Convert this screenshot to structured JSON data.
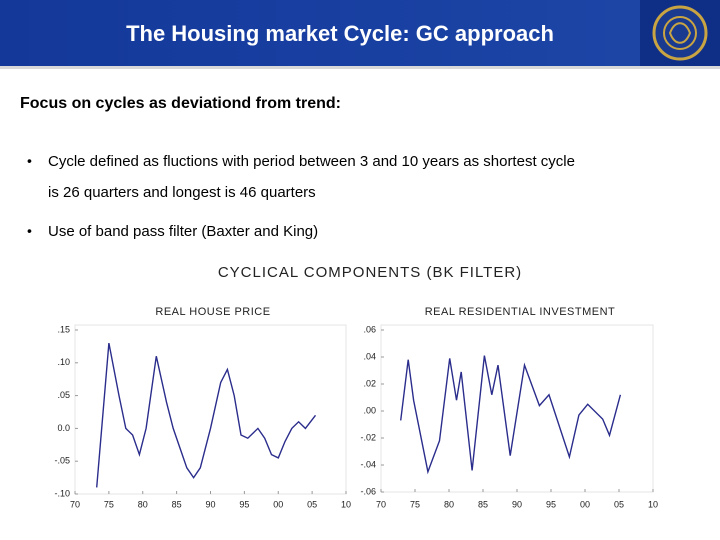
{
  "header": {
    "title": "The Housing market Cycle: GC approach"
  },
  "heading": "Focus on cycles as deviationd from trend:",
  "bullets": [
    "Cycle defined as fluctions with period between 3 and 10 years as shortest cycle",
    "is 26 quarters and longest is 46 quarters",
    "Use of band pass filter (Baxter and King)"
  ],
  "figure_title": "CYCLICAL COMPONENTS (BK FILTER)",
  "chart_data": [
    {
      "type": "line",
      "title": "REAL HOUSE PRICE",
      "color": "#2b2d8c",
      "x": [
        1973.2,
        1975,
        1976.5,
        1977.5,
        1978.5,
        1979.5,
        1980.5,
        1982,
        1983.5,
        1984.5,
        1985.5,
        1986.5,
        1987.5,
        1988.5,
        1990,
        1991.5,
        1992.5,
        1993.5,
        1994.5,
        1995.5,
        1997,
        1998,
        1999,
        2000,
        2001,
        2002,
        2003,
        2004,
        2005.5
      ],
      "values": [
        -0.09,
        0.13,
        0.05,
        0.0,
        -0.01,
        -0.04,
        0.0,
        0.11,
        0.04,
        0.0,
        -0.03,
        -0.06,
        -0.075,
        -0.06,
        0.0,
        0.07,
        0.09,
        0.05,
        -0.01,
        -0.015,
        0.0,
        -0.015,
        -0.04,
        -0.045,
        -0.02,
        0.0,
        0.01,
        0.0,
        0.02
      ],
      "xlim": [
        1970,
        2010
      ],
      "ylim": [
        -0.1,
        0.15
      ],
      "xticks": [
        {
          "value": 1970,
          "label": "70"
        },
        {
          "value": 1975,
          "label": "75"
        },
        {
          "value": 1980,
          "label": "80"
        },
        {
          "value": 1985,
          "label": "85"
        },
        {
          "value": 1990,
          "label": "90"
        },
        {
          "value": 1995,
          "label": "95"
        },
        {
          "value": 2000,
          "label": "00"
        },
        {
          "value": 2005,
          "label": "05"
        },
        {
          "value": 2010,
          "label": "10"
        }
      ],
      "yticks": [
        {
          "value": 0.15,
          "label": ".15"
        },
        {
          "value": 0.1,
          "label": ".10"
        },
        {
          "value": 0.05,
          "label": ".05"
        },
        {
          "value": 0,
          "label": "0.0"
        },
        {
          "value": -0.05,
          "label": "-.05"
        },
        {
          "value": -0.1,
          "label": "-.10"
        }
      ]
    },
    {
      "type": "line",
      "title": "REAL RESIDENTIAL INVESTMENT",
      "color": "#2b2d8c",
      "x": [
        1972.9,
        1974,
        1974.8,
        1976.9,
        1978.6,
        1980.1,
        1981.1,
        1981.8,
        1983.4,
        1985.2,
        1986.3,
        1987.2,
        1989,
        1991.1,
        1993.3,
        1994.7,
        1997.7,
        1999.1,
        2000.4,
        2002.6,
        2003.6,
        2005.2
      ],
      "values": [
        -0.007,
        0.038,
        0.008,
        -0.045,
        -0.022,
        0.039,
        0.008,
        0.029,
        -0.044,
        0.041,
        0.012,
        0.034,
        -0.033,
        0.034,
        0.004,
        0.012,
        -0.034,
        -0.003,
        0.005,
        -0.006,
        -0.018,
        0.012
      ],
      "xlim": [
        1970,
        2010
      ],
      "ylim": [
        -0.06,
        0.06
      ],
      "xticks": [
        {
          "value": 1970,
          "label": "70"
        },
        {
          "value": 1975,
          "label": "75"
        },
        {
          "value": 1980,
          "label": "80"
        },
        {
          "value": 1985,
          "label": "85"
        },
        {
          "value": 1990,
          "label": "90"
        },
        {
          "value": 1995,
          "label": "95"
        },
        {
          "value": 2000,
          "label": "00"
        },
        {
          "value": 2005,
          "label": "05"
        },
        {
          "value": 2010,
          "label": "10"
        }
      ],
      "yticks": [
        {
          "value": 0.06,
          "label": ".06"
        },
        {
          "value": 0.04,
          "label": ".04"
        },
        {
          "value": 0.02,
          "label": ".02"
        },
        {
          "value": 0,
          "label": ".00"
        },
        {
          "value": -0.02,
          "label": "-.02"
        },
        {
          "value": -0.04,
          "label": "-.04"
        },
        {
          "value": -0.06,
          "label": "-.06"
        }
      ]
    }
  ]
}
